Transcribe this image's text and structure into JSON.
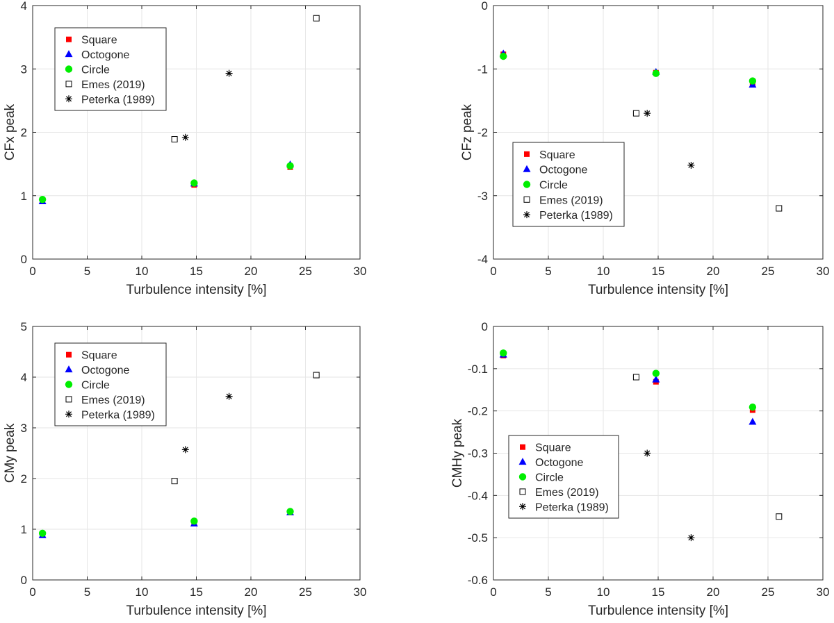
{
  "chart_data": [
    {
      "type": "scatter",
      "xlabel": "Turbulence intensity [%]",
      "ylabel": "CFx peak",
      "xlim": [
        0,
        30
      ],
      "ylim": [
        0,
        4
      ],
      "xticks": [
        0,
        5,
        10,
        15,
        20,
        25,
        30
      ],
      "yticks": [
        0,
        1,
        2,
        3,
        4
      ],
      "ytick_labels": [
        "0",
        "1",
        "2",
        "3",
        "4"
      ],
      "grid": true,
      "legend_position": "top-left",
      "series": [
        {
          "name": "Square",
          "marker": "square-filled",
          "color": "#ff0000",
          "x": [
            0.9,
            14.8,
            23.6
          ],
          "y": [
            0.93,
            1.17,
            1.45
          ]
        },
        {
          "name": "Octogone",
          "marker": "triangle",
          "color": "#0000ff",
          "x": [
            0.9,
            14.8,
            23.6
          ],
          "y": [
            0.91,
            1.19,
            1.49
          ]
        },
        {
          "name": "Circle",
          "marker": "circle",
          "color": "#00ee00",
          "x": [
            0.9,
            14.8,
            23.6
          ],
          "y": [
            0.94,
            1.2,
            1.47
          ]
        },
        {
          "name": "Emes (2019)",
          "marker": "square-open",
          "color": "#000000",
          "x": [
            13,
            26
          ],
          "y": [
            1.89,
            3.8
          ]
        },
        {
          "name": "Peterka (1989)",
          "marker": "asterisk",
          "color": "#000000",
          "x": [
            14,
            18
          ],
          "y": [
            1.92,
            2.93
          ]
        }
      ]
    },
    {
      "type": "scatter",
      "xlabel": "Turbulence intensity [%]",
      "ylabel": "CFz peak",
      "xlim": [
        0,
        30
      ],
      "ylim": [
        -4,
        0
      ],
      "xticks": [
        0,
        5,
        10,
        15,
        20,
        25,
        30
      ],
      "yticks": [
        -4,
        -3,
        -2,
        -1,
        0
      ],
      "ytick_labels": [
        "-4",
        "-3",
        "-2",
        "-1",
        "0"
      ],
      "grid": true,
      "legend_position": "bottom-left",
      "series": [
        {
          "name": "Square",
          "marker": "square-filled",
          "color": "#ff0000",
          "x": [
            0.9,
            14.8,
            23.6
          ],
          "y": [
            -0.77,
            -1.06,
            -1.24
          ]
        },
        {
          "name": "Octogone",
          "marker": "triangle",
          "color": "#0000ff",
          "x": [
            0.9,
            14.8,
            23.6
          ],
          "y": [
            -0.76,
            -1.05,
            -1.25
          ]
        },
        {
          "name": "Circle",
          "marker": "circle",
          "color": "#00ee00",
          "x": [
            0.9,
            14.8,
            23.6
          ],
          "y": [
            -0.8,
            -1.07,
            -1.19
          ]
        },
        {
          "name": "Emes (2019)",
          "marker": "square-open",
          "color": "#000000",
          "x": [
            13,
            26
          ],
          "y": [
            -1.7,
            -3.2
          ]
        },
        {
          "name": "Peterka (1989)",
          "marker": "asterisk",
          "color": "#000000",
          "x": [
            14,
            18
          ],
          "y": [
            -1.7,
            -2.52
          ]
        }
      ]
    },
    {
      "type": "scatter",
      "xlabel": "Turbulence intensity [%]",
      "ylabel": "CMy peak",
      "xlim": [
        0,
        30
      ],
      "ylim": [
        0,
        5
      ],
      "xticks": [
        0,
        5,
        10,
        15,
        20,
        25,
        30
      ],
      "yticks": [
        0,
        1,
        2,
        3,
        4,
        5
      ],
      "ytick_labels": [
        "0",
        "1",
        "2",
        "3",
        "4",
        "5"
      ],
      "grid": true,
      "legend_position": "top-left",
      "series": [
        {
          "name": "Square",
          "marker": "square-filled",
          "color": "#ff0000",
          "x": [
            0.9,
            14.8,
            23.6
          ],
          "y": [
            0.9,
            1.12,
            1.33
          ]
        },
        {
          "name": "Octogone",
          "marker": "triangle",
          "color": "#0000ff",
          "x": [
            0.9,
            14.8,
            23.6
          ],
          "y": [
            0.88,
            1.11,
            1.33
          ]
        },
        {
          "name": "Circle",
          "marker": "circle",
          "color": "#00ee00",
          "x": [
            0.9,
            14.8,
            23.6
          ],
          "y": [
            0.92,
            1.16,
            1.35
          ]
        },
        {
          "name": "Emes (2019)",
          "marker": "square-open",
          "color": "#000000",
          "x": [
            13,
            26
          ],
          "y": [
            1.95,
            4.04
          ]
        },
        {
          "name": "Peterka (1989)",
          "marker": "asterisk",
          "color": "#000000",
          "x": [
            14,
            18
          ],
          "y": [
            2.57,
            3.62
          ]
        }
      ]
    },
    {
      "type": "scatter",
      "xlabel": "Turbulence intensity [%]",
      "ylabel": "CMHy peak",
      "xlim": [
        0,
        30
      ],
      "ylim": [
        -0.6,
        0
      ],
      "xticks": [
        0,
        5,
        10,
        15,
        20,
        25,
        30
      ],
      "yticks": [
        -0.6,
        -0.5,
        -0.4,
        -0.3,
        -0.2,
        -0.1,
        0
      ],
      "ytick_labels": [
        "-0.6",
        "-0.5",
        "-0.4",
        "-0.3",
        "-0.2",
        "-0.1",
        "0"
      ],
      "grid": true,
      "legend_position": "bottom-left",
      "series": [
        {
          "name": "Square",
          "marker": "square-filled",
          "color": "#ff0000",
          "x": [
            0.9,
            14.8,
            23.6
          ],
          "y": [
            -0.069,
            -0.131,
            -0.198
          ]
        },
        {
          "name": "Octogone",
          "marker": "triangle",
          "color": "#0000ff",
          "x": [
            0.9,
            14.8,
            23.6
          ],
          "y": [
            -0.067,
            -0.126,
            -0.226
          ]
        },
        {
          "name": "Circle",
          "marker": "circle",
          "color": "#00ee00",
          "x": [
            0.9,
            14.8,
            23.6
          ],
          "y": [
            -0.063,
            -0.111,
            -0.191
          ]
        },
        {
          "name": "Emes (2019)",
          "marker": "square-open",
          "color": "#000000",
          "x": [
            13,
            26
          ],
          "y": [
            -0.12,
            -0.45
          ]
        },
        {
          "name": "Peterka (1989)",
          "marker": "asterisk",
          "color": "#000000",
          "x": [
            14,
            18
          ],
          "y": [
            -0.3,
            -0.5
          ]
        }
      ]
    }
  ]
}
